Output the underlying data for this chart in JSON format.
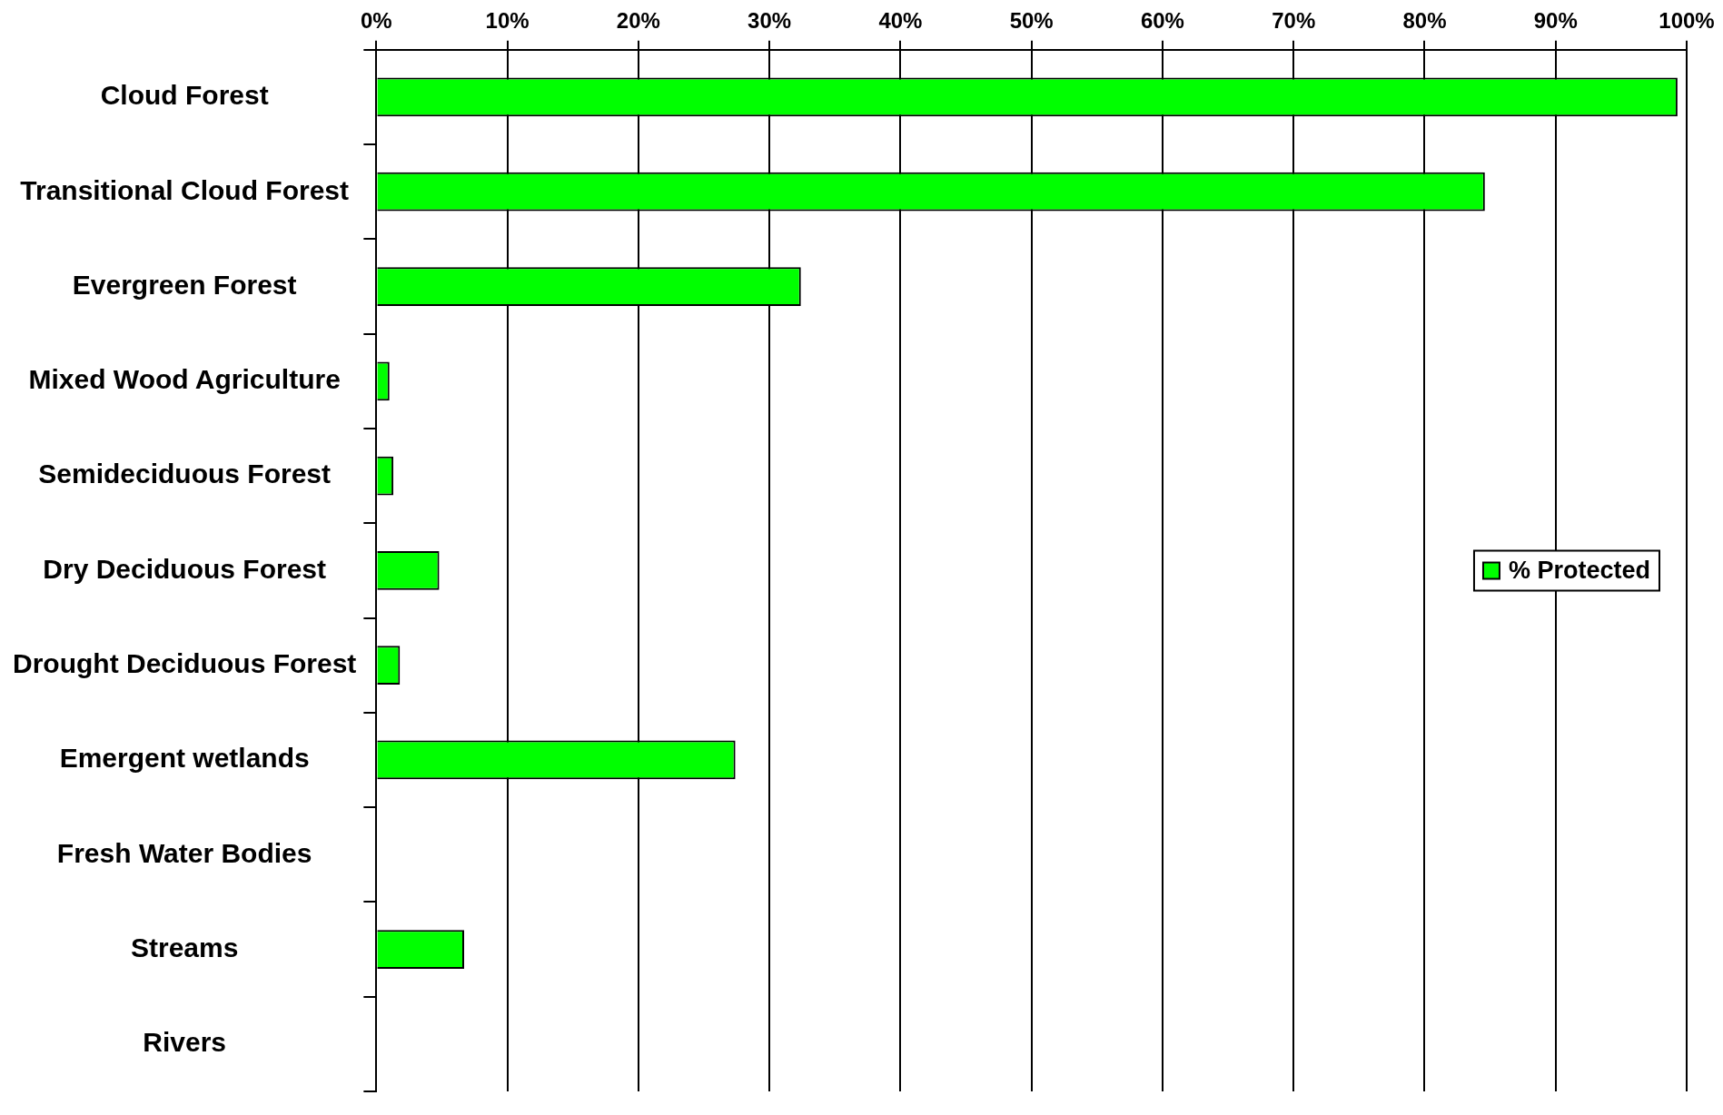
{
  "chart_data": {
    "type": "bar",
    "orientation": "horizontal",
    "categories": [
      "Cloud Forest",
      "Transitional Cloud Forest",
      "Evergreen Forest",
      "Mixed Wood Agriculture",
      "Semideciduous Forest",
      "Dry Deciduous Forest",
      "Drought Deciduous Forest",
      "Emergent wetlands",
      "Fresh Water Bodies",
      "Streams",
      "Rivers"
    ],
    "series": [
      {
        "name": "% Protected",
        "color": "#00ff00",
        "values": [
          99.3,
          84.6,
          32.4,
          1.0,
          1.3,
          4.8,
          1.8,
          27.4,
          0,
          6.7,
          0
        ]
      }
    ],
    "xlim": [
      0,
      100
    ],
    "xticks": [
      {
        "value": 0,
        "label": "0%"
      },
      {
        "value": 10,
        "label": "10%"
      },
      {
        "value": 20,
        "label": "20%"
      },
      {
        "value": 30,
        "label": "30%"
      },
      {
        "value": 40,
        "label": "40%"
      },
      {
        "value": 50,
        "label": "50%"
      },
      {
        "value": 60,
        "label": "60%"
      },
      {
        "value": 70,
        "label": "70%"
      },
      {
        "value": 80,
        "label": "80%"
      },
      {
        "value": 90,
        "label": "90%"
      },
      {
        "value": 100,
        "label": "100%"
      }
    ],
    "grid": "x",
    "legend": "right"
  }
}
